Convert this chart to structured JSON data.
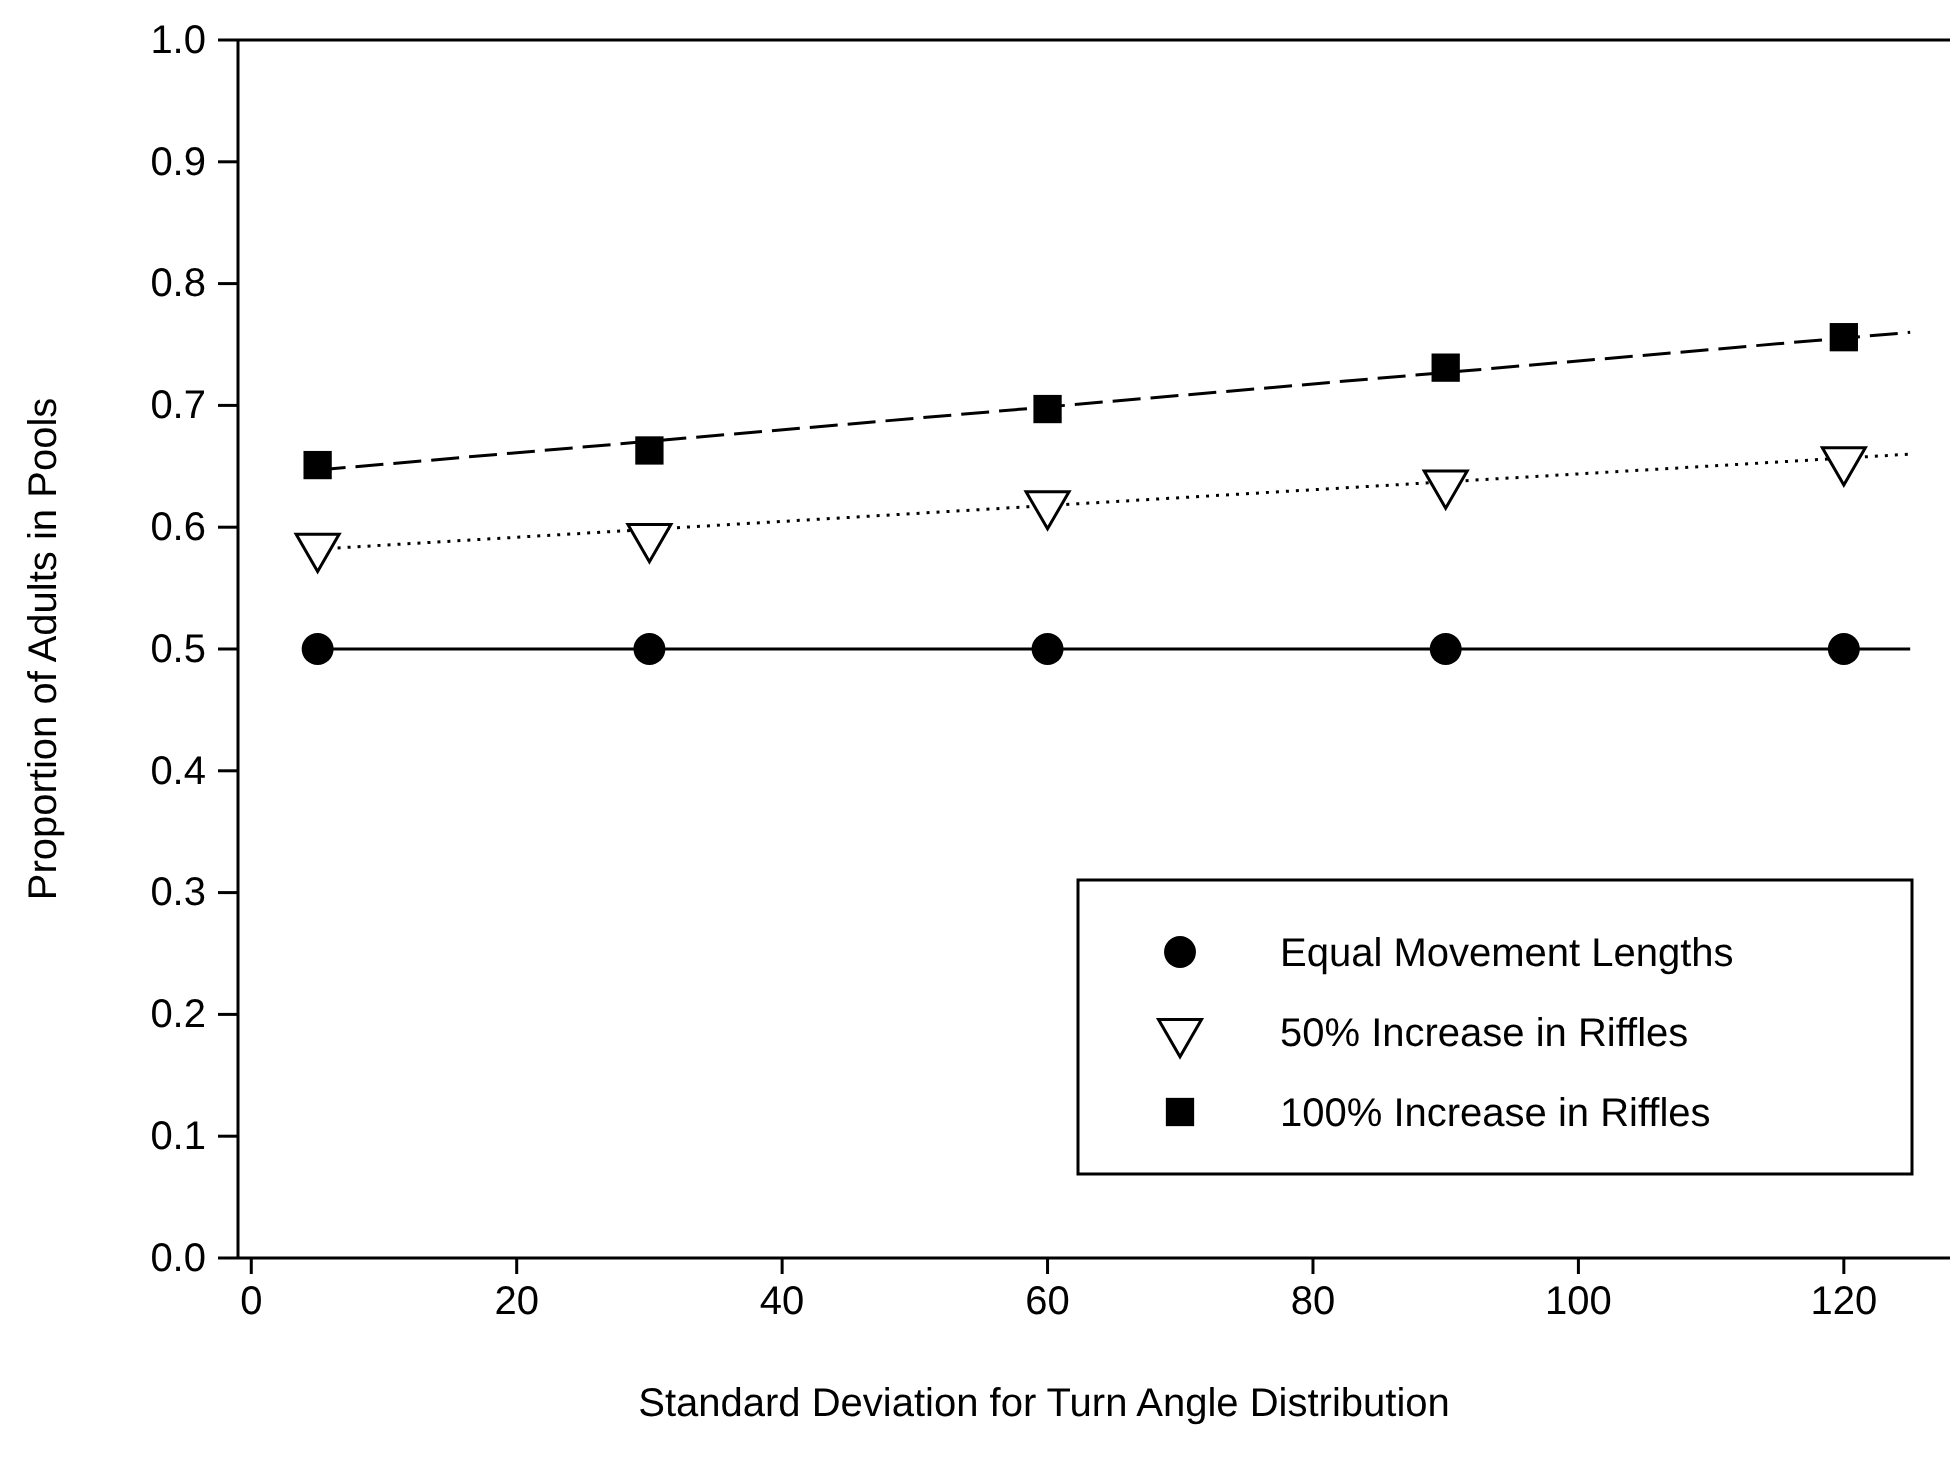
{
  "chart_data": {
    "type": "scatter",
    "xlabel": "Standard Deviation for Turn Angle Distribution",
    "ylabel": "Proportion of Adults in Pools",
    "xlim": [
      -1,
      128
    ],
    "xticks": [
      0,
      20,
      40,
      60,
      80,
      100,
      120
    ],
    "ylim": [
      0,
      1
    ],
    "yticks": [
      {
        "value": 0,
        "label": "0.0"
      },
      {
        "value": 0.1,
        "label": "0.1"
      },
      {
        "value": 0.2,
        "label": "0.2"
      },
      {
        "value": 0.3,
        "label": "0.3"
      },
      {
        "value": 0.4,
        "label": "0.4"
      },
      {
        "value": 0.5,
        "label": "0.5"
      },
      {
        "value": 0.6,
        "label": "0.6"
      },
      {
        "value": 0.7,
        "label": "0.7"
      },
      {
        "value": 0.8,
        "label": "0.8"
      },
      {
        "value": 0.9,
        "label": "0.9"
      },
      {
        "value": 1,
        "label": "1.0"
      }
    ],
    "grid": false,
    "legend": "bottom right",
    "series": [
      {
        "type": "line",
        "x": [
          5,
          125
        ],
        "values": [
          0.5,
          0.5
        ],
        "color": "#000000",
        "marker": "none",
        "line_style": "solid"
      },
      {
        "type": "line",
        "x": [
          5,
          125
        ],
        "values": [
          0.582,
          0.66
        ],
        "color": "#000000",
        "marker": "none",
        "line_style": "dotted"
      },
      {
        "type": "line",
        "x": [
          5,
          125
        ],
        "values": [
          0.647,
          0.76
        ],
        "color": "#000000",
        "marker": "none",
        "line_style": "dashed"
      },
      {
        "name": "Equal Movement Lengths",
        "x": [
          5,
          30,
          60,
          90,
          120
        ],
        "values": [
          0.5,
          0.5,
          0.5,
          0.5,
          0.5
        ],
        "color": "#000000",
        "marker": "circle"
      },
      {
        "name": "50% Increase in Riffles",
        "x": [
          5,
          30,
          60,
          90,
          120
        ],
        "values": [
          0.584,
          0.592,
          0.619,
          0.636,
          0.655
        ],
        "color": "#000000",
        "marker": "triangle"
      },
      {
        "name": "100% Increase in Riffles",
        "x": [
          5,
          30,
          60,
          90,
          120
        ],
        "values": [
          0.651,
          0.663,
          0.697,
          0.731,
          0.756
        ],
        "color": "#000000",
        "marker": "square"
      }
    ]
  }
}
